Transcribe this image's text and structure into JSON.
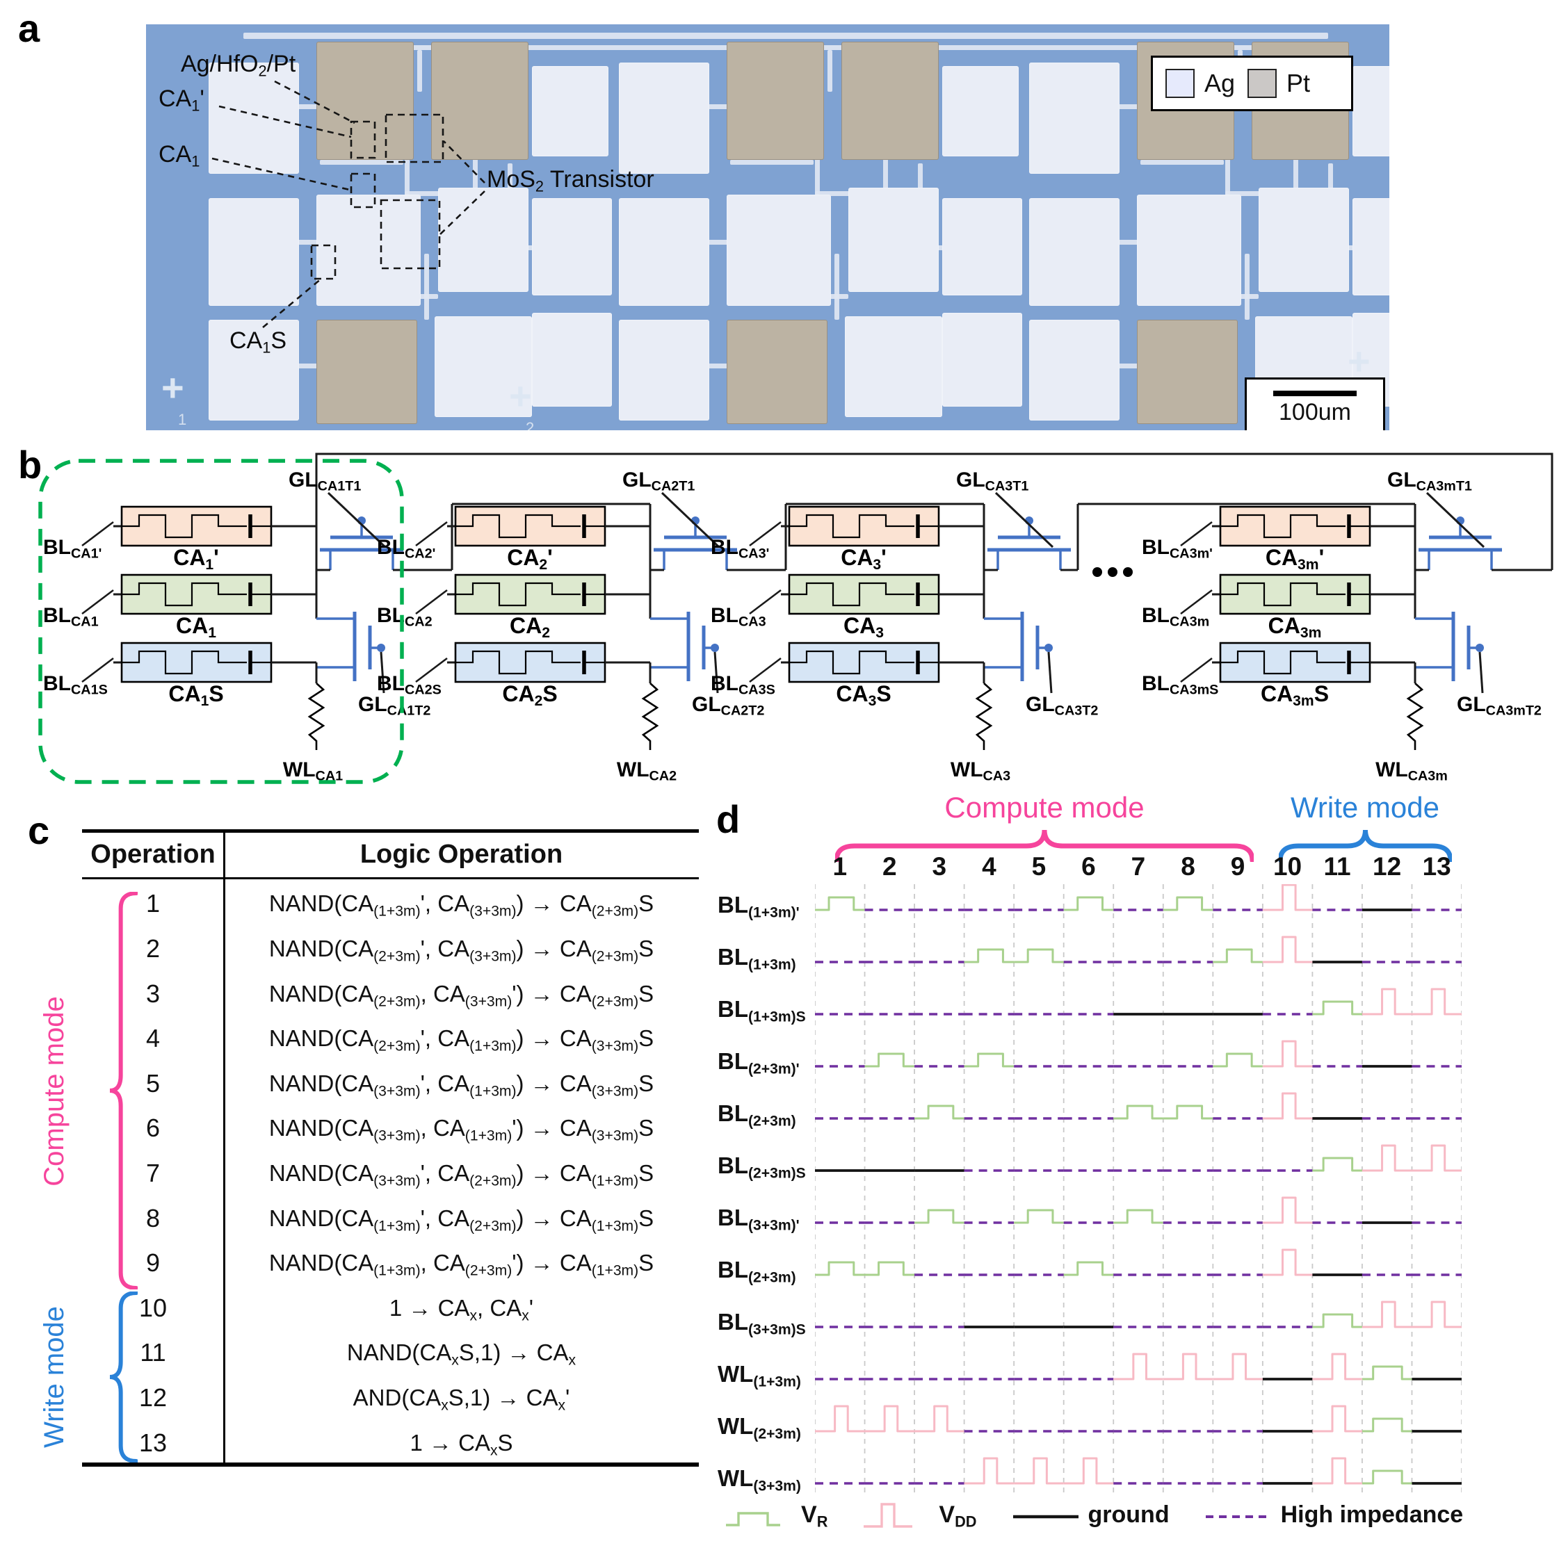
{
  "panel_a": {
    "letter": "a",
    "stack_label": "Ag/HfO_{2}/Pt",
    "ca1_prime_label": "CA_{1}'",
    "ca1_label": "CA_{1}",
    "ca1s_label": "CA_{1}S",
    "mos2_label": "MoS_{2} Transistor",
    "legend": {
      "ag": "Ag",
      "pt": "Pt"
    },
    "scale_label": "100um",
    "marks": [
      "1",
      "2"
    ]
  },
  "panel_b": {
    "letter": "b",
    "ellipsis": "...",
    "cells": [
      {
        "bl_prime": "BL_{CA1'}",
        "mem_prime": "CA_{1}'",
        "bl": "BL_{CA1}",
        "mem": "CA_{1}",
        "bl_s": "BL_{CA1S}",
        "mem_s": "CA_{1}S",
        "gl_t1": "GL_{CA1T1}",
        "gl_t2": "GL_{CA1T2}",
        "wl": "WL_{CA1}"
      },
      {
        "bl_prime": "BL_{CA2'}",
        "mem_prime": "CA_{2}'",
        "bl": "BL_{CA2}",
        "mem": "CA_{2}",
        "bl_s": "BL_{CA2S}",
        "mem_s": "CA_{2}S",
        "gl_t1": "GL_{CA2T1}",
        "gl_t2": "GL_{CA2T2}",
        "wl": "WL_{CA2}"
      },
      {
        "bl_prime": "BL_{CA3'}",
        "mem_prime": "CA_{3}'",
        "bl": "BL_{CA3}",
        "mem": "CA_{3}",
        "bl_s": "BL_{CA3S}",
        "mem_s": "CA_{3}S",
        "gl_t1": "GL_{CA3T1}",
        "gl_t2": "GL_{CA3T2}",
        "wl": "WL_{CA3}"
      },
      {
        "bl_prime": "BL_{CA3m'}",
        "mem_prime": "CA_{3m}'",
        "bl": "BL_{CA3m}",
        "mem": "CA_{3m}",
        "bl_s": "BL_{CA3mS}",
        "mem_s": "CA_{3m}S",
        "gl_t1": "GL_{CA3mT1}",
        "gl_t2": "GL_{CA3mT2}",
        "wl": "WL_{CA3m}"
      }
    ]
  },
  "panel_c": {
    "letter": "c",
    "headers": [
      "Operation",
      "Logic Operation"
    ],
    "compute_label": "Compute mode",
    "write_label": "Write mode",
    "rows": [
      {
        "op": "1",
        "logic": "NAND(CA_{(1+3m)}', CA_{(3+3m)}) → CA_{(2+3m)}S"
      },
      {
        "op": "2",
        "logic": "NAND(CA_{(2+3m)}', CA_{(3+3m)}) → CA_{(2+3m)}S"
      },
      {
        "op": "3",
        "logic": "NAND(CA_{(2+3m)}, CA_{(3+3m)}') → CA_{(2+3m)}S"
      },
      {
        "op": "4",
        "logic": "NAND(CA_{(2+3m)}', CA_{(1+3m)}) → CA_{(3+3m)}S"
      },
      {
        "op": "5",
        "logic": "NAND(CA_{(3+3m)}', CA_{(1+3m)}) → CA_{(3+3m)}S"
      },
      {
        "op": "6",
        "logic": "NAND(CA_{(3+3m)}, CA_{(1+3m)}') → CA_{(3+3m)}S"
      },
      {
        "op": "7",
        "logic": "NAND(CA_{(3+3m)}', CA_{(2+3m)}) → CA_{(1+3m)}S"
      },
      {
        "op": "8",
        "logic": "NAND(CA_{(1+3m)}', CA_{(2+3m)}) → CA_{(1+3m)}S"
      },
      {
        "op": "9",
        "logic": "NAND(CA_{(1+3m)}, CA_{(2+3m)}') → CA_{(1+3m)}S"
      },
      {
        "op": "10",
        "logic": "1 → CA_{x}, CA_{x}'"
      },
      {
        "op": "11",
        "logic": "NAND(CA_{x}S,1) → CA_{x}"
      },
      {
        "op": "12",
        "logic": "AND(CA_{x}S,1) → CA_{x}'"
      },
      {
        "op": "13",
        "logic": "1 → CA_{x}S"
      }
    ]
  },
  "panel_d": {
    "letter": "d",
    "compute_label": "Compute mode",
    "write_label": "Write mode",
    "columns": [
      "1",
      "2",
      "3",
      "4",
      "5",
      "6",
      "7",
      "8",
      "9",
      "10",
      "11",
      "12",
      "13"
    ],
    "rows": [
      {
        "label": "BL_{(1+3m)'}",
        "pattern": "G----G-G-P-_-"
      },
      {
        "label": "BL_{(1+3m)}",
        "pattern": "---GG---GP_--"
      },
      {
        "label": "BL_{(1+3m)S}",
        "pattern": "------___-gPP"
      },
      {
        "label": "BL_{(2+3m)'}",
        "pattern": "-G-G----GP-_-"
      },
      {
        "label": "BL_{(2+3m)}",
        "pattern": "--G---GG-P_--"
      },
      {
        "label": "BL_{(2+3m)S}",
        "pattern": "___-------gPP"
      },
      {
        "label": "BL_{(3+3m)'}",
        "pattern": "--G-G-G--P-_-"
      },
      {
        "label": "BL_{(2+3m)}",
        "pattern": "GG---G---P_--"
      },
      {
        "label": "BL_{(3+3m)S}",
        "pattern": "---___----gPP"
      },
      {
        "label": "WL_{(1+3m)}",
        "pattern": "------PPP_Pg_"
      },
      {
        "label": "WL_{(2+3m)}",
        "pattern": "PPP------_Pg_"
      },
      {
        "label": "WL_{(3+3m)}",
        "pattern": "---PPP---_Pg_"
      }
    ],
    "legend": [
      {
        "type": "vr",
        "label": "V_{R}"
      },
      {
        "type": "vdd",
        "label": "V_{DD}"
      },
      {
        "type": "ground",
        "label": "ground"
      },
      {
        "type": "hiz",
        "label": "High impedance"
      }
    ],
    "colors": {
      "vr_green": "#a8d18d",
      "vdd_pink": "#f7b9c4",
      "ground_black": "#141414",
      "hiz_purple": "#7030a0",
      "compute_pink": "#f6449c",
      "write_blue": "#2a82d8"
    }
  }
}
